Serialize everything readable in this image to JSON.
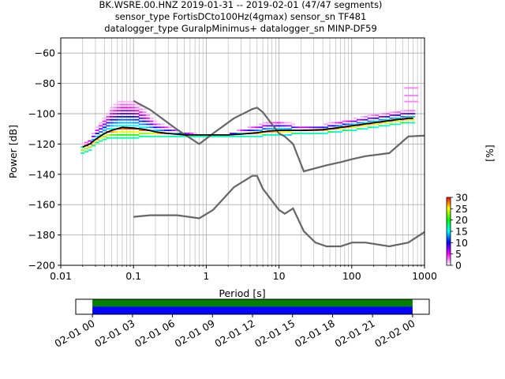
{
  "chart_data": {
    "type": "heatmap",
    "title_lines": [
      "BK.WSRE.00.HNZ   2019-01-31 -- 2019-02-01  (47/47 segments)",
      "sensor_type FortisDCto100Hz(4gmax) sensor_sn TF481",
      "datalogger_type GuralpMinimus+ datalogger_sn MINP-DF59"
    ],
    "xlabel": "Period [s]",
    "ylabel": "Power [dB]",
    "x_scale": "log",
    "xlim": [
      0.01,
      1000
    ],
    "ylim": [
      -200,
      -50
    ],
    "x_ticks": [
      {
        "value": 0.01,
        "label": "0.01"
      },
      {
        "value": 0.1,
        "label": "0.1"
      },
      {
        "value": 1,
        "label": "1"
      },
      {
        "value": 10,
        "label": "10"
      },
      {
        "value": 100,
        "label": "100"
      },
      {
        "value": 1000,
        "label": "1000"
      }
    ],
    "y_ticks": [
      {
        "value": -60,
        "label": "−60"
      },
      {
        "value": -80,
        "label": "−80"
      },
      {
        "value": -100,
        "label": "−100"
      },
      {
        "value": -120,
        "label": "−120"
      },
      {
        "value": -140,
        "label": "−140"
      },
      {
        "value": -160,
        "label": "−160"
      },
      {
        "value": -180,
        "label": "−180"
      },
      {
        "value": -200,
        "label": "−200"
      }
    ],
    "grid": true,
    "colorbar": {
      "label": "[%]",
      "min": 0,
      "max": 30,
      "ticks": [
        {
          "value": 0,
          "label": "0"
        },
        {
          "value": 5,
          "label": "5"
        },
        {
          "value": 10,
          "label": "10"
        },
        {
          "value": 15,
          "label": "15"
        },
        {
          "value": 20,
          "label": "20"
        },
        {
          "value": 25,
          "label": "25"
        },
        {
          "value": 30,
          "label": "30"
        }
      ],
      "colors": [
        "#ffffff",
        "#ff00ff",
        "#0000ff",
        "#00ffff",
        "#00ff00",
        "#ffff00",
        "#ff0000"
      ]
    },
    "series": [
      {
        "role": "noise-model-high",
        "color": "#666666",
        "x": [
          0.1,
          0.17,
          0.4,
          0.8,
          1.24,
          2.4,
          4.3,
          5,
          6,
          10,
          12,
          15.6,
          21.9,
          31.6,
          45,
          70,
          101,
          154,
          328,
          600,
          10000
        ],
        "y": [
          -91.5,
          -97.4,
          -110.5,
          -120,
          -113,
          -103,
          -97,
          -96,
          -99,
          -113,
          -115,
          -120,
          -138,
          -136,
          -134,
          -132,
          -130,
          -128,
          -126,
          -115,
          -112
        ]
      },
      {
        "role": "noise-model-low",
        "color": "#666666",
        "x": [
          0.1,
          0.17,
          0.4,
          0.8,
          1.24,
          2.4,
          4.3,
          5,
          6,
          10,
          12,
          15.6,
          21.9,
          31.6,
          45,
          70,
          101,
          154,
          328,
          600,
          1000
        ],
        "y": [
          -168,
          -167,
          -167,
          -169,
          -163.5,
          -148.5,
          -141,
          -141,
          -149.5,
          -163.5,
          -166,
          -162.5,
          -177.5,
          -185,
          -187.5,
          -187.5,
          -185,
          -185,
          -187.5,
          -185,
          -178
        ]
      },
      {
        "role": "mean",
        "color": "#000000",
        "x": [
          0.02,
          0.025,
          0.03,
          0.04,
          0.05,
          0.07,
          0.1,
          0.15,
          0.2,
          0.3,
          0.5,
          1,
          2,
          3,
          5,
          7,
          10,
          20,
          40,
          60,
          100,
          200,
          400,
          600,
          700
        ],
        "y": [
          -122,
          -120,
          -117,
          -113,
          -111,
          -109,
          -109.5,
          -110.5,
          -112,
          -113,
          -114,
          -114,
          -114,
          -113.5,
          -112.5,
          -111.5,
          -111,
          -111,
          -110.5,
          -109.5,
          -108,
          -106,
          -104,
          -103,
          -103
        ]
      }
    ],
    "psd_density": {
      "x": [
        0.02,
        0.025,
        0.03,
        0.04,
        0.05,
        0.07,
        0.1,
        0.15,
        0.2,
        0.3,
        0.5,
        1,
        2,
        3,
        5,
        7,
        10,
        20,
        40,
        60,
        100,
        200,
        400,
        600,
        700
      ],
      "low": [
        -126,
        -124,
        -120,
        -117,
        -116,
        -116,
        -116,
        -115,
        -115,
        -115,
        -115,
        -115,
        -115,
        -115,
        -115,
        -114,
        -114,
        -113,
        -113,
        -112,
        -111,
        -109,
        -107,
        -106,
        -106
      ],
      "high": [
        -120,
        -117,
        -110,
        -102,
        -95,
        -90,
        -91,
        -98,
        -105,
        -108,
        -112,
        -114,
        -113,
        -110,
        -107,
        -105,
        -104,
        -108,
        -107,
        -105,
        -103,
        -100,
        -98,
        -97,
        -97
      ],
      "outliers": [
        {
          "x": 660,
          "y": -83
        },
        {
          "x": 660,
          "y": -88
        },
        {
          "x": 660,
          "y": -92
        }
      ]
    },
    "timeline": {
      "tick_labels": [
        "02-01 00",
        "02-01 03",
        "02-01 06",
        "02-01 09",
        "02-01 12",
        "02-01 15",
        "02-01 18",
        "02-01 21",
        "02-02 00"
      ],
      "start_hour": -1.25,
      "end_hour": 25.25,
      "coverage_start_hour": 0,
      "coverage_end_hour": 24,
      "bands": [
        {
          "role": "data-coverage",
          "color": "#008000"
        },
        {
          "role": "psd-coverage",
          "color": "#0000ff"
        }
      ]
    }
  }
}
